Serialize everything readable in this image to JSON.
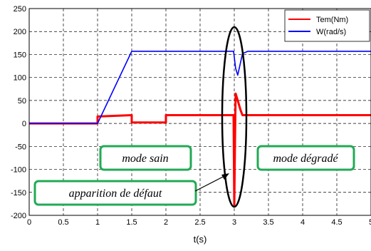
{
  "chart_data": {
    "type": "line",
    "title": "",
    "xlabel": "t(s)",
    "ylabel": "",
    "xlim": [
      0,
      5
    ],
    "ylim": [
      -200,
      250
    ],
    "x_ticks": [
      "0",
      "0.5",
      "1",
      "1.5",
      "2",
      "2.5",
      "3",
      "3.5",
      "4",
      "4.5",
      "5"
    ],
    "y_ticks": [
      "250",
      "200",
      "150",
      "100",
      "50",
      "0",
      "-50",
      "-100",
      "-150",
      "-200"
    ],
    "grid": true,
    "legend_position": "top-right",
    "series": [
      {
        "name": "Tem(Nm)",
        "color": "#ff0000",
        "x": [
          0,
          1.0,
          1.0,
          1.5,
          1.5,
          2.0,
          2.0,
          2.99,
          3.0,
          3.01,
          3.02,
          3.03,
          3.06,
          3.09,
          3.12,
          3.2,
          5.0
        ],
        "y": [
          0,
          0,
          15,
          18,
          2,
          2,
          18,
          18,
          -180,
          -40,
          65,
          60,
          45,
          30,
          18,
          18,
          18
        ]
      },
      {
        "name": "W(rad/s)",
        "color": "#0000ff",
        "x": [
          0,
          1.0,
          1.5,
          2.99,
          3.02,
          3.05,
          3.08,
          3.12,
          3.2,
          5.0
        ],
        "y": [
          0,
          0,
          157,
          157,
          120,
          105,
          125,
          152,
          157,
          157
        ]
      }
    ],
    "annotations": [
      {
        "text": "mode sain",
        "box_color": "#22aa55"
      },
      {
        "text": "mode dégradé",
        "box_color": "#22aa55"
      },
      {
        "text": "apparition de défaut",
        "box_color": "#22aa55"
      }
    ]
  }
}
